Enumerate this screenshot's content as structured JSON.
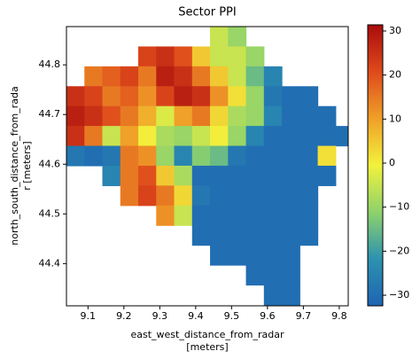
{
  "chart_data": {
    "type": "heatmap",
    "title": "Sector PPI",
    "xlabel": [
      "east_west_distance_from_radar",
      "[meters]"
    ],
    "ylabel": [
      "north_south_distance_from_rada",
      "r [meters]"
    ],
    "xlim": [
      9.04,
      9.825
    ],
    "ylim": [
      44.315,
      44.877
    ],
    "xticks": [
      9.1,
      9.2,
      9.3,
      9.4,
      9.5,
      9.6,
      9.7,
      9.8
    ],
    "yticks": [
      44.4,
      44.5,
      44.6,
      44.7,
      44.8
    ],
    "x": [
      9.065,
      9.115,
      9.165,
      9.215,
      9.265,
      9.315,
      9.365,
      9.415,
      9.465,
      9.515,
      9.565,
      9.615,
      9.665,
      9.715,
      9.765,
      9.815
    ],
    "y": [
      44.857,
      44.817,
      44.777,
      44.737,
      44.697,
      44.657,
      44.617,
      44.577,
      44.537,
      44.497,
      44.457,
      44.417,
      44.377,
      44.337
    ],
    "values": [
      [
        null,
        null,
        null,
        null,
        null,
        null,
        null,
        null,
        -5,
        -10,
        null,
        null,
        null,
        null,
        null,
        null
      ],
      [
        null,
        null,
        null,
        null,
        22,
        25,
        20,
        5,
        -5,
        -5,
        -10,
        null,
        null,
        null,
        null,
        null
      ],
      [
        null,
        15,
        18,
        22,
        15,
        28,
        25,
        15,
        5,
        -5,
        -15,
        -25,
        null,
        null,
        null,
        null
      ],
      [
        25,
        22,
        15,
        18,
        12,
        22,
        28,
        25,
        12,
        2,
        -10,
        -28,
        -30,
        -30,
        null,
        null
      ],
      [
        28,
        25,
        20,
        15,
        8,
        -3,
        10,
        15,
        3,
        -8,
        -10,
        -25,
        -30,
        -30,
        -30,
        null
      ],
      [
        25,
        15,
        -5,
        10,
        0,
        -8,
        -10,
        -5,
        0,
        -10,
        -25,
        -30,
        -30,
        -30,
        -30,
        -30
      ],
      [
        -28,
        -30,
        -28,
        15,
        12,
        -10,
        -25,
        -12,
        -15,
        -28,
        -30,
        -30,
        -30,
        -30,
        2,
        null
      ],
      [
        null,
        null,
        -25,
        15,
        20,
        5,
        -8,
        -30,
        -30,
        -30,
        -30,
        -30,
        -30,
        -30,
        -30,
        null
      ],
      [
        null,
        null,
        null,
        15,
        22,
        15,
        3,
        -28,
        -30,
        -30,
        -30,
        -30,
        -30,
        -30,
        null,
        null
      ],
      [
        null,
        null,
        null,
        null,
        null,
        12,
        -5,
        -30,
        -30,
        -30,
        -30,
        -30,
        -30,
        -30,
        null,
        null
      ],
      [
        null,
        null,
        null,
        null,
        null,
        null,
        null,
        -30,
        -30,
        -30,
        -30,
        -30,
        -30,
        -30,
        null,
        null
      ],
      [
        null,
        null,
        null,
        null,
        null,
        null,
        null,
        null,
        -30,
        -30,
        -30,
        -30,
        -30,
        null,
        null,
        null
      ],
      [
        null,
        null,
        null,
        null,
        null,
        null,
        null,
        null,
        null,
        null,
        -30,
        -30,
        -30,
        null,
        null,
        null
      ],
      [
        null,
        null,
        null,
        null,
        null,
        null,
        null,
        null,
        null,
        null,
        null,
        -30,
        -30,
        null,
        null,
        null
      ]
    ],
    "zlim": [
      -32.4,
      31.4
    ],
    "colorbar_ticks": [
      {
        "value": -30,
        "label": "−30"
      },
      {
        "value": -20,
        "label": "−20"
      },
      {
        "value": -10,
        "label": "−10"
      },
      0,
      10,
      20,
      30
    ],
    "colormap": [
      "#1f64b2",
      "#2c92b0",
      "#8ed26c",
      "#f2f23c",
      "#f0a028",
      "#de4a1c",
      "#a80c0c"
    ]
  }
}
